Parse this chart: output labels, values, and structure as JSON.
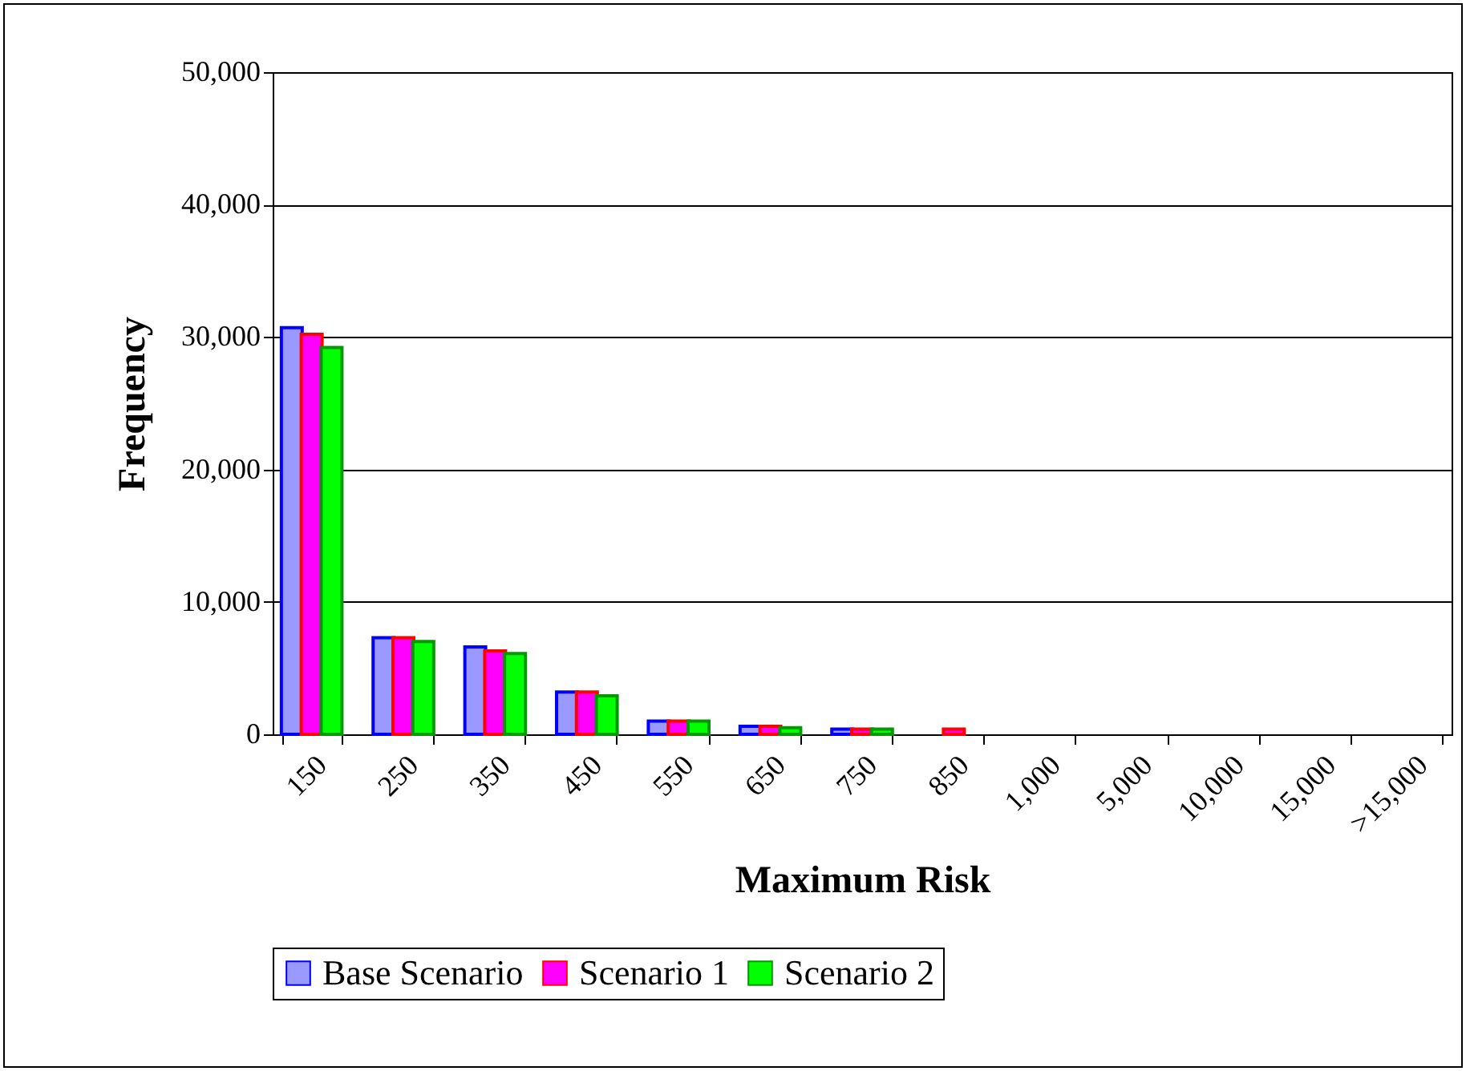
{
  "chart_data": {
    "type": "bar",
    "xlabel": "Maximum Risk",
    "ylabel": "Frequency",
    "categories": [
      "150",
      "250",
      "350",
      "450",
      "550",
      "650",
      "750",
      "850",
      "1,000",
      "5,000",
      "10,000",
      "15,000",
      ">15,000"
    ],
    "series": [
      {
        "name": "Base Scenario",
        "color": "#9999ff",
        "values": [
          30700,
          7300,
          6600,
          3200,
          1000,
          600,
          400,
          0,
          0,
          0,
          0,
          0,
          0
        ]
      },
      {
        "name": "Scenario 1",
        "color": "#ff00ff",
        "values": [
          30200,
          7300,
          6300,
          3200,
          1000,
          600,
          400,
          400,
          0,
          0,
          0,
          0,
          0
        ]
      },
      {
        "name": "Scenario 2",
        "color": "#00ff00",
        "values": [
          29200,
          7000,
          6100,
          2900,
          1000,
          500,
          400,
          0,
          0,
          0,
          0,
          0,
          0
        ]
      }
    ],
    "ylim": [
      0,
      50000
    ],
    "yticks": [
      0,
      {
        "value": 10000,
        "label": "10,000"
      },
      {
        "value": 20000,
        "label": "20,000"
      },
      {
        "value": 30000,
        "label": "30,000"
      },
      {
        "value": 40000,
        "label": "40,000"
      },
      {
        "value": 50000,
        "label": "50,000"
      }
    ],
    "grid": "y",
    "legend": "bottom"
  }
}
